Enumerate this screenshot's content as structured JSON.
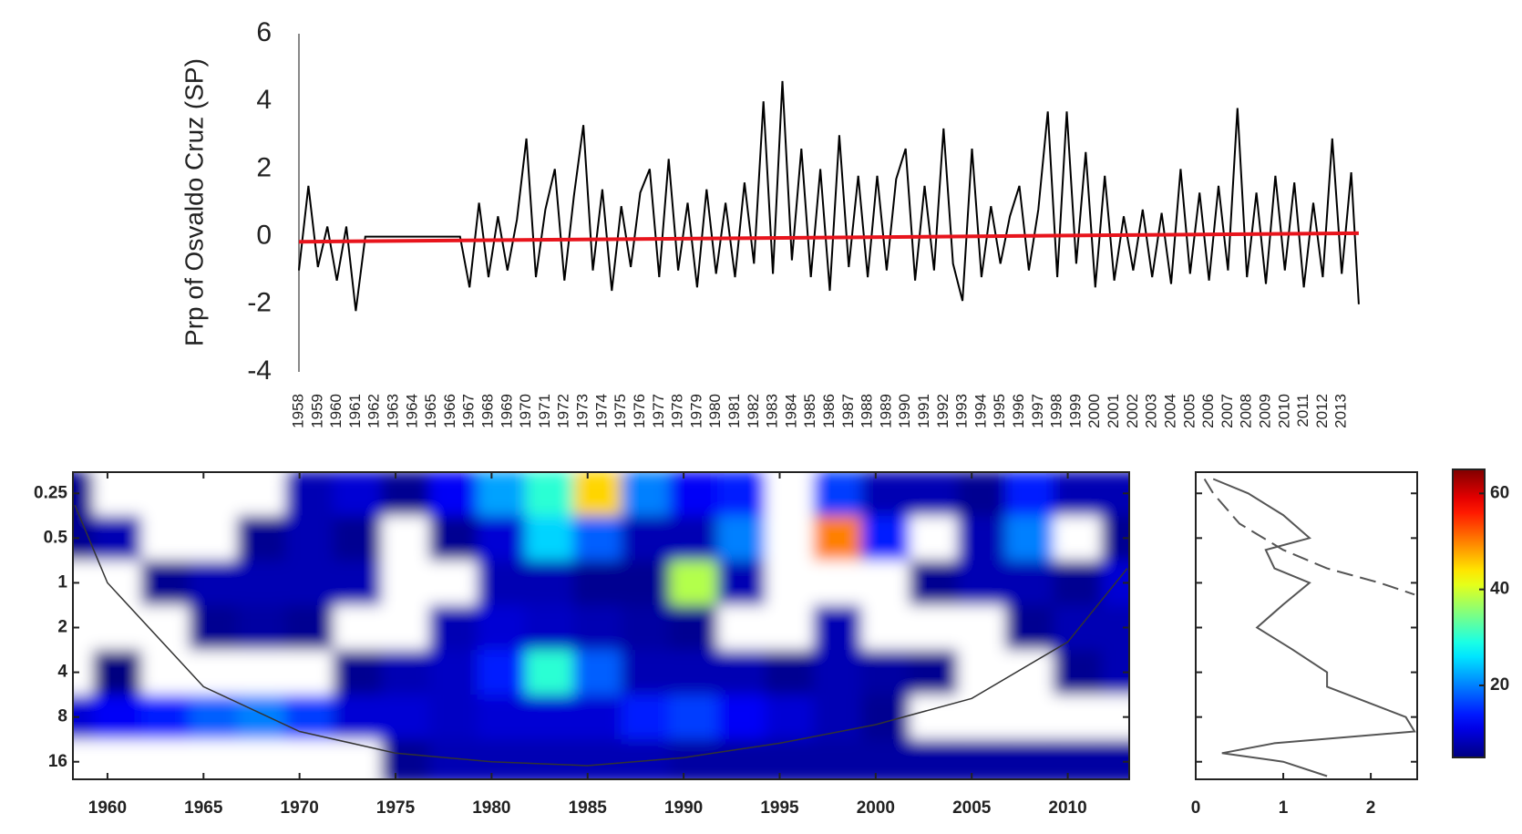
{
  "chart_data": [
    {
      "type": "line",
      "ylabel": "Prp of Osvaldo Cruz (SP)",
      "xlim": [
        1958,
        2014
      ],
      "ylim": [
        -4,
        6
      ],
      "yticks": [
        -4,
        -2,
        0,
        2,
        4,
        6
      ],
      "xticks": [
        1958,
        1959,
        1960,
        1961,
        1962,
        1963,
        1964,
        1965,
        1966,
        1967,
        1968,
        1969,
        1970,
        1971,
        1972,
        1973,
        1974,
        1975,
        1976,
        1977,
        1978,
        1979,
        1980,
        1981,
        1982,
        1983,
        1984,
        1985,
        1986,
        1987,
        1988,
        1989,
        1990,
        1991,
        1992,
        1993,
        1994,
        1995,
        1996,
        1997,
        1998,
        1999,
        2000,
        2001,
        2002,
        2003,
        2004,
        2005,
        2006,
        2007,
        2008,
        2009,
        2010,
        2011,
        2012,
        2013
      ],
      "series": [
        {
          "color": "#000000",
          "x": [
            1958,
            1958.5,
            1959,
            1959.5,
            1960,
            1960.5,
            1961,
            1961.5,
            1966.5,
            1967,
            1967.5,
            1968,
            1968.5,
            1969,
            1969.5,
            1970,
            1970.5,
            1971,
            1971.5,
            1972,
            1972.5,
            1973,
            1973.5,
            1974,
            1974.5,
            1975,
            1975.5,
            1976,
            1976.5,
            1977,
            1977.5,
            1978,
            1978.5,
            1979,
            1979.5,
            1980,
            1980.5,
            1981,
            1981.5,
            1982,
            1982.5,
            1983,
            1983.5,
            1984,
            1984.5,
            1985,
            1985.5,
            1986,
            1986.5,
            1987,
            1987.5,
            1988,
            1988.5,
            1989,
            1989.5,
            1990,
            1990.5,
            1991,
            1991.5,
            1992,
            1992.5,
            1993,
            1993.5,
            1994,
            1994.5,
            1995,
            1995.5,
            1996,
            1996.5,
            1997,
            1997.5,
            1998,
            1998.5,
            1999,
            1999.5,
            2000,
            2000.5,
            2001,
            2001.5,
            2002,
            2002.5,
            2003,
            2003.5,
            2004,
            2004.5,
            2005,
            2005.5,
            2006,
            2006.5,
            2007,
            2007.5,
            2008,
            2008.5,
            2009,
            2009.5,
            2010,
            2010.5,
            2011,
            2011.5,
            2012,
            2012.5,
            2013,
            2013.5,
            2013.9
          ],
          "values": [
            -1.0,
            1.5,
            -0.9,
            0.3,
            -1.3,
            0.3,
            -2.2,
            0,
            0,
            -1.5,
            1.0,
            -1.2,
            0.6,
            -1.0,
            0.5,
            2.9,
            -1.2,
            0.8,
            2.0,
            -1.3,
            1.2,
            3.3,
            -1.0,
            1.4,
            -1.6,
            0.9,
            -0.9,
            1.3,
            2.0,
            -1.2,
            2.3,
            -1.0,
            1.0,
            -1.5,
            1.4,
            -1.1,
            1.0,
            -1.2,
            1.6,
            -0.8,
            4.0,
            -1.1,
            4.6,
            -0.7,
            2.6,
            -1.2,
            2.0,
            -1.6,
            3.0,
            -0.9,
            1.8,
            -1.2,
            1.8,
            -1.0,
            1.7,
            2.6,
            -1.3,
            1.5,
            -1.0,
            3.2,
            -0.8,
            -1.9,
            2.6,
            -1.2,
            0.9,
            -0.8,
            0.6,
            1.5,
            -1.0,
            0.8,
            3.7,
            -1.2,
            3.7,
            -0.8,
            2.5,
            -1.5,
            1.8,
            -1.3,
            0.6,
            -1.0,
            0.8,
            -1.2,
            0.7,
            -1.4,
            2.0,
            -1.1,
            1.3,
            -1.3,
            1.5,
            -1.0,
            3.8,
            -1.2,
            1.3,
            -1.4,
            1.8,
            -1.0,
            1.6,
            -1.5,
            1.0,
            -1.2,
            2.9,
            -1.1,
            1.9,
            -2.0
          ]
        },
        {
          "color": "#e8141c",
          "x": [
            1958,
            2013.9
          ],
          "values": [
            -0.15,
            0.1
          ]
        }
      ]
    },
    {
      "type": "heatmap",
      "log_y": true,
      "xlim": [
        1958.2,
        2013.2
      ],
      "ylim": [
        0.18,
        21
      ],
      "xticks": [
        1960,
        1965,
        1970,
        1975,
        1980,
        1985,
        1990,
        1995,
        2000,
        2005,
        2010
      ],
      "yticks": [
        0.25,
        0.5,
        1,
        2,
        4,
        8,
        16
      ],
      "x": [
        1958,
        1960.5,
        1963,
        1965.5,
        1968,
        1970.5,
        1973,
        1975.5,
        1978,
        1980.5,
        1983,
        1985.5,
        1988,
        1990.5,
        1993,
        1995.5,
        1998,
        2000.5,
        2003,
        2005.5,
        2008,
        2010.5,
        2013
      ],
      "periods": [
        0.25,
        0.5,
        1,
        2,
        4,
        8,
        16
      ],
      "z": [
        [
          6,
          0,
          0,
          0,
          0,
          8,
          10,
          6,
          12,
          22,
          30,
          45,
          20,
          12,
          14,
          4,
          16,
          8,
          8,
          6,
          14,
          8,
          8
        ],
        [
          6,
          8,
          0,
          0,
          6,
          8,
          6,
          0,
          6,
          10,
          25,
          18,
          8,
          8,
          20,
          0,
          50,
          14,
          4,
          8,
          20,
          4,
          6
        ],
        [
          0,
          0,
          6,
          8,
          8,
          8,
          8,
          0,
          4,
          8,
          8,
          6,
          6,
          38,
          8,
          0,
          0,
          0,
          6,
          8,
          8,
          6,
          10
        ],
        [
          0,
          0,
          0,
          6,
          7,
          6,
          0,
          0,
          8,
          10,
          9,
          8,
          7,
          6,
          0,
          0,
          8,
          0,
          0,
          0,
          6,
          8,
          8
        ],
        [
          0,
          5,
          0,
          0,
          0,
          0,
          6,
          8,
          9,
          14,
          30,
          18,
          8,
          8,
          8,
          6,
          8,
          7,
          6,
          0,
          4,
          6,
          8
        ],
        [
          10,
          12,
          14,
          18,
          20,
          16,
          10,
          10,
          9,
          10,
          10,
          10,
          14,
          16,
          12,
          10,
          8,
          6,
          0,
          0,
          0,
          0,
          0
        ],
        [
          0,
          0,
          0,
          0,
          0,
          0,
          0,
          6,
          8,
          8,
          8,
          8,
          8,
          7,
          7,
          7,
          7,
          7,
          7,
          7,
          7,
          7,
          7
        ]
      ],
      "coi": {
        "x": [
          1958.3,
          1960,
          1965,
          1970,
          1975,
          1980,
          1985,
          1990,
          1995,
          2000,
          2005,
          2010,
          2013.1
        ],
        "periods": [
          0.3,
          1,
          5,
          10,
          14,
          16,
          17,
          15,
          12,
          9,
          6,
          2.5,
          0.8
        ]
      }
    },
    {
      "type": "profile",
      "log_y": true,
      "xlim": [
        0,
        2.53
      ],
      "ylim": [
        0.18,
        21
      ],
      "xticks": [
        0,
        1,
        2
      ],
      "series": [
        {
          "color": "#555555",
          "periods": [
            0.2,
            0.25,
            0.35,
            0.5,
            0.6,
            0.8,
            1,
            1.4,
            2,
            2.8,
            4,
            5,
            8,
            10,
            12,
            14,
            16,
            20
          ],
          "values": [
            0.2,
            0.6,
            1.0,
            1.3,
            0.8,
            0.9,
            1.3,
            1.0,
            0.7,
            1.1,
            1.5,
            1.5,
            2.4,
            2.5,
            0.9,
            0.3,
            1.0,
            1.5
          ]
        },
        {
          "color": "#555555",
          "dash": true,
          "periods": [
            0.2,
            0.25,
            0.4,
            0.6,
            0.8,
            1,
            1.2
          ],
          "values": [
            0.1,
            0.2,
            0.5,
            1.0,
            1.5,
            2.1,
            2.5
          ]
        }
      ]
    },
    {
      "type": "colorbar",
      "colormap": "jet",
      "clim": [
        5,
        65
      ],
      "ticks": [
        20,
        40,
        60
      ]
    }
  ]
}
